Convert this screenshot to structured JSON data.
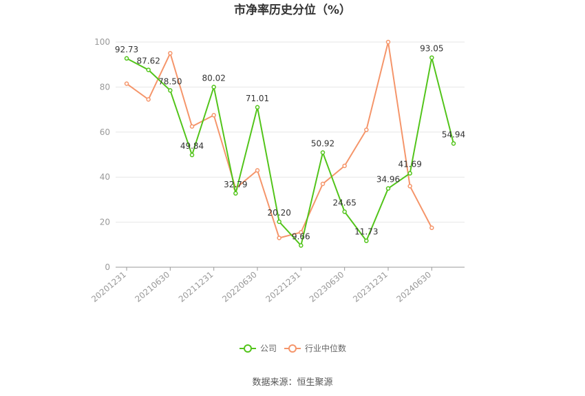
{
  "title": "市净率历史分位（%）",
  "source": "数据来源：恒生聚源",
  "colors": {
    "company": "#52c41a",
    "industry": "#f5956a",
    "grid": "#e6e6e6",
    "axis": "#999999"
  },
  "chart_data": {
    "type": "line",
    "title": "市净率历史分位（%）",
    "ylim": [
      0,
      100
    ],
    "yticks": [
      0,
      20,
      40,
      60,
      80,
      100
    ],
    "grid": true,
    "legend_position": "bottom",
    "xtick_labels": [
      "20201231",
      "20210630",
      "20211231",
      "20220630",
      "20221231",
      "20230630",
      "20231231",
      "20240630"
    ],
    "xtick_indices": [
      0,
      2,
      4,
      6,
      8,
      10,
      12,
      14
    ],
    "x_count": 16,
    "series": [
      {
        "name": "公司",
        "values": [
          92.73,
          87.62,
          78.5,
          49.84,
          80.02,
          32.79,
          71.01,
          20.2,
          9.66,
          50.92,
          24.65,
          11.73,
          34.96,
          41.69,
          93.05,
          54.94
        ],
        "labels": [
          "92.73",
          "87.62",
          "78.50",
          "49.84",
          "80.02",
          "32.79",
          "71.01",
          "20.20",
          "9.66",
          "50.92",
          "24.65",
          "11.73",
          "34.96",
          "41.69",
          "93.05",
          "54.94"
        ]
      },
      {
        "name": "行业中位数",
        "values": [
          81.5,
          74.5,
          95.0,
          62.5,
          67.5,
          35.0,
          43.0,
          13.0,
          15.5,
          37.0,
          45.0,
          61.0,
          100.0,
          36.0,
          17.5,
          null
        ]
      }
    ]
  }
}
